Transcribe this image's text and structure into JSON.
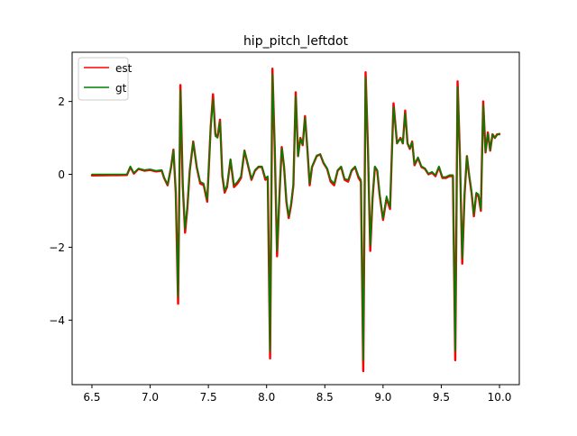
{
  "chart_data": {
    "type": "line",
    "title": "hip_pitch_leftdot",
    "xlabel": "",
    "ylabel": "",
    "xlim": [
      6.33,
      10.17
    ],
    "ylim": [
      -5.77,
      3.35
    ],
    "xticks": [
      6.5,
      7.0,
      7.5,
      8.0,
      8.5,
      9.0,
      9.5,
      10.0
    ],
    "xtick_labels": [
      "6.5",
      "7.0",
      "7.5",
      "8.0",
      "8.5",
      "9.0",
      "9.5",
      "10.0"
    ],
    "yticks": [
      -4,
      -2,
      0,
      2
    ],
    "ytick_labels": [
      "−4",
      "−2",
      "0",
      "2"
    ],
    "grid": false,
    "legend": "upper-left",
    "series": [
      {
        "name": "est",
        "color": "#ff0000",
        "x": [
          6.5,
          6.8,
          6.83,
          6.86,
          6.9,
          6.95,
          7.0,
          7.05,
          7.1,
          7.12,
          7.15,
          7.18,
          7.2,
          7.22,
          7.24,
          7.26,
          7.28,
          7.3,
          7.32,
          7.34,
          7.37,
          7.4,
          7.43,
          7.46,
          7.49,
          7.52,
          7.54,
          7.56,
          7.58,
          7.6,
          7.62,
          7.64,
          7.66,
          7.69,
          7.72,
          7.75,
          7.78,
          7.81,
          7.84,
          7.87,
          7.9,
          7.93,
          7.96,
          7.99,
          8.01,
          8.03,
          8.05,
          8.07,
          8.09,
          8.11,
          8.13,
          8.15,
          8.17,
          8.19,
          8.21,
          8.23,
          8.25,
          8.27,
          8.29,
          8.31,
          8.33,
          8.35,
          8.37,
          8.39,
          8.41,
          8.43,
          8.46,
          8.49,
          8.52,
          8.55,
          8.58,
          8.61,
          8.64,
          8.67,
          8.7,
          8.73,
          8.76,
          8.79,
          8.81,
          8.83,
          8.85,
          8.87,
          8.89,
          8.91,
          8.93,
          8.95,
          8.97,
          9.0,
          9.03,
          9.06,
          9.09,
          9.12,
          9.15,
          9.17,
          9.19,
          9.21,
          9.23,
          9.25,
          9.27,
          9.3,
          9.33,
          9.36,
          9.39,
          9.42,
          9.45,
          9.48,
          9.51,
          9.54,
          9.57,
          9.6,
          9.62,
          9.64,
          9.66,
          9.68,
          9.7,
          9.72,
          9.74,
          9.76,
          9.78,
          9.8,
          9.82,
          9.84,
          9.86,
          9.88,
          9.9,
          9.92,
          9.94,
          9.96,
          9.98,
          10.0
        ],
        "y": [
          -0.03,
          -0.02,
          0.2,
          0.02,
          0.15,
          0.1,
          0.12,
          0.08,
          0.1,
          -0.1,
          -0.3,
          0.2,
          0.68,
          -0.5,
          -3.55,
          2.45,
          -0.3,
          -1.6,
          -0.9,
          0.1,
          0.9,
          0.2,
          -0.25,
          -0.3,
          -0.75,
          1.3,
          2.2,
          1.1,
          1.05,
          1.5,
          -0.05,
          -0.5,
          -0.35,
          0.4,
          -0.35,
          -0.25,
          -0.1,
          0.65,
          0.25,
          -0.15,
          0.1,
          0.2,
          0.2,
          -0.15,
          -0.1,
          -5.05,
          2.9,
          0.7,
          -2.25,
          -0.6,
          0.75,
          0.2,
          -0.75,
          -1.2,
          -0.85,
          -0.3,
          2.25,
          0.5,
          1.0,
          0.8,
          1.6,
          0.7,
          -0.3,
          0.2,
          0.35,
          0.5,
          0.55,
          0.3,
          0.15,
          -0.2,
          -0.3,
          0.1,
          0.2,
          -0.15,
          -0.2,
          0.1,
          0.2,
          -0.1,
          -0.2,
          -5.4,
          2.8,
          0.75,
          -2.1,
          -0.65,
          0.2,
          0.1,
          -0.55,
          -1.25,
          -0.65,
          -0.95,
          1.95,
          0.85,
          1.0,
          0.85,
          1.75,
          0.85,
          0.7,
          0.9,
          0.25,
          0.45,
          0.2,
          0.15,
          0.0,
          0.05,
          -0.05,
          0.2,
          -0.1,
          -0.1,
          -0.05,
          -0.05,
          -5.1,
          2.55,
          0.5,
          -2.45,
          -0.55,
          0.5,
          -0.05,
          -0.5,
          -1.15,
          -0.55,
          -0.6,
          -1.0,
          2.0,
          0.6,
          1.15,
          0.65,
          1.1,
          1.0,
          1.1,
          1.1
        ]
      },
      {
        "name": "gt",
        "color": "#008000",
        "x": [
          6.5,
          6.8,
          6.83,
          6.86,
          6.9,
          6.95,
          7.0,
          7.05,
          7.1,
          7.12,
          7.15,
          7.18,
          7.2,
          7.22,
          7.24,
          7.26,
          7.28,
          7.3,
          7.32,
          7.34,
          7.37,
          7.4,
          7.43,
          7.46,
          7.49,
          7.52,
          7.54,
          7.56,
          7.58,
          7.6,
          7.62,
          7.64,
          7.66,
          7.69,
          7.72,
          7.75,
          7.78,
          7.81,
          7.84,
          7.87,
          7.9,
          7.93,
          7.96,
          7.99,
          8.01,
          8.03,
          8.05,
          8.07,
          8.09,
          8.11,
          8.13,
          8.15,
          8.17,
          8.19,
          8.21,
          8.23,
          8.25,
          8.27,
          8.29,
          8.31,
          8.33,
          8.35,
          8.37,
          8.39,
          8.41,
          8.43,
          8.46,
          8.49,
          8.52,
          8.55,
          8.58,
          8.61,
          8.64,
          8.67,
          8.7,
          8.73,
          8.76,
          8.79,
          8.81,
          8.83,
          8.85,
          8.87,
          8.89,
          8.91,
          8.93,
          8.95,
          8.97,
          9.0,
          9.03,
          9.06,
          9.09,
          9.12,
          9.15,
          9.17,
          9.19,
          9.21,
          9.23,
          9.25,
          9.27,
          9.3,
          9.33,
          9.36,
          9.39,
          9.42,
          9.45,
          9.48,
          9.51,
          9.54,
          9.57,
          9.6,
          9.62,
          9.64,
          9.66,
          9.68,
          9.7,
          9.72,
          9.74,
          9.76,
          9.78,
          9.8,
          9.82,
          9.84,
          9.86,
          9.88,
          9.9,
          9.92,
          9.94,
          9.96,
          9.98,
          10.0
        ],
        "y": [
          0.0,
          0.0,
          0.22,
          0.04,
          0.16,
          0.12,
          0.14,
          0.1,
          0.12,
          -0.08,
          -0.28,
          0.22,
          0.66,
          -0.45,
          -3.35,
          2.3,
          -0.25,
          -1.5,
          -0.85,
          0.12,
          0.88,
          0.22,
          -0.2,
          -0.25,
          -0.7,
          1.25,
          2.05,
          1.05,
          1.0,
          1.45,
          0.0,
          -0.45,
          -0.3,
          0.42,
          -0.3,
          -0.2,
          -0.05,
          0.65,
          0.28,
          -0.12,
          0.12,
          0.22,
          0.22,
          -0.1,
          -0.05,
          -4.85,
          2.75,
          0.72,
          -2.1,
          -0.55,
          0.72,
          0.22,
          -0.7,
          -1.15,
          -0.8,
          -0.25,
          2.15,
          0.5,
          0.98,
          0.82,
          1.55,
          0.72,
          -0.25,
          0.22,
          0.37,
          0.52,
          0.55,
          0.32,
          0.17,
          -0.15,
          -0.25,
          0.12,
          0.22,
          -0.12,
          -0.15,
          0.12,
          0.22,
          -0.05,
          -0.15,
          -5.1,
          2.65,
          0.75,
          -1.95,
          -0.6,
          0.22,
          0.12,
          -0.5,
          -1.2,
          -0.6,
          -0.9,
          1.85,
          0.85,
          0.98,
          0.85,
          1.68,
          0.85,
          0.72,
          0.88,
          0.28,
          0.47,
          0.22,
          0.17,
          0.02,
          0.07,
          -0.02,
          0.22,
          -0.07,
          -0.07,
          -0.02,
          -0.02,
          -4.85,
          2.4,
          0.5,
          -2.3,
          -0.5,
          0.5,
          -0.02,
          -0.45,
          -1.1,
          -0.5,
          -0.55,
          -0.95,
          1.9,
          0.62,
          1.12,
          0.67,
          1.1,
          1.0,
          1.08,
          1.12
        ]
      }
    ]
  }
}
